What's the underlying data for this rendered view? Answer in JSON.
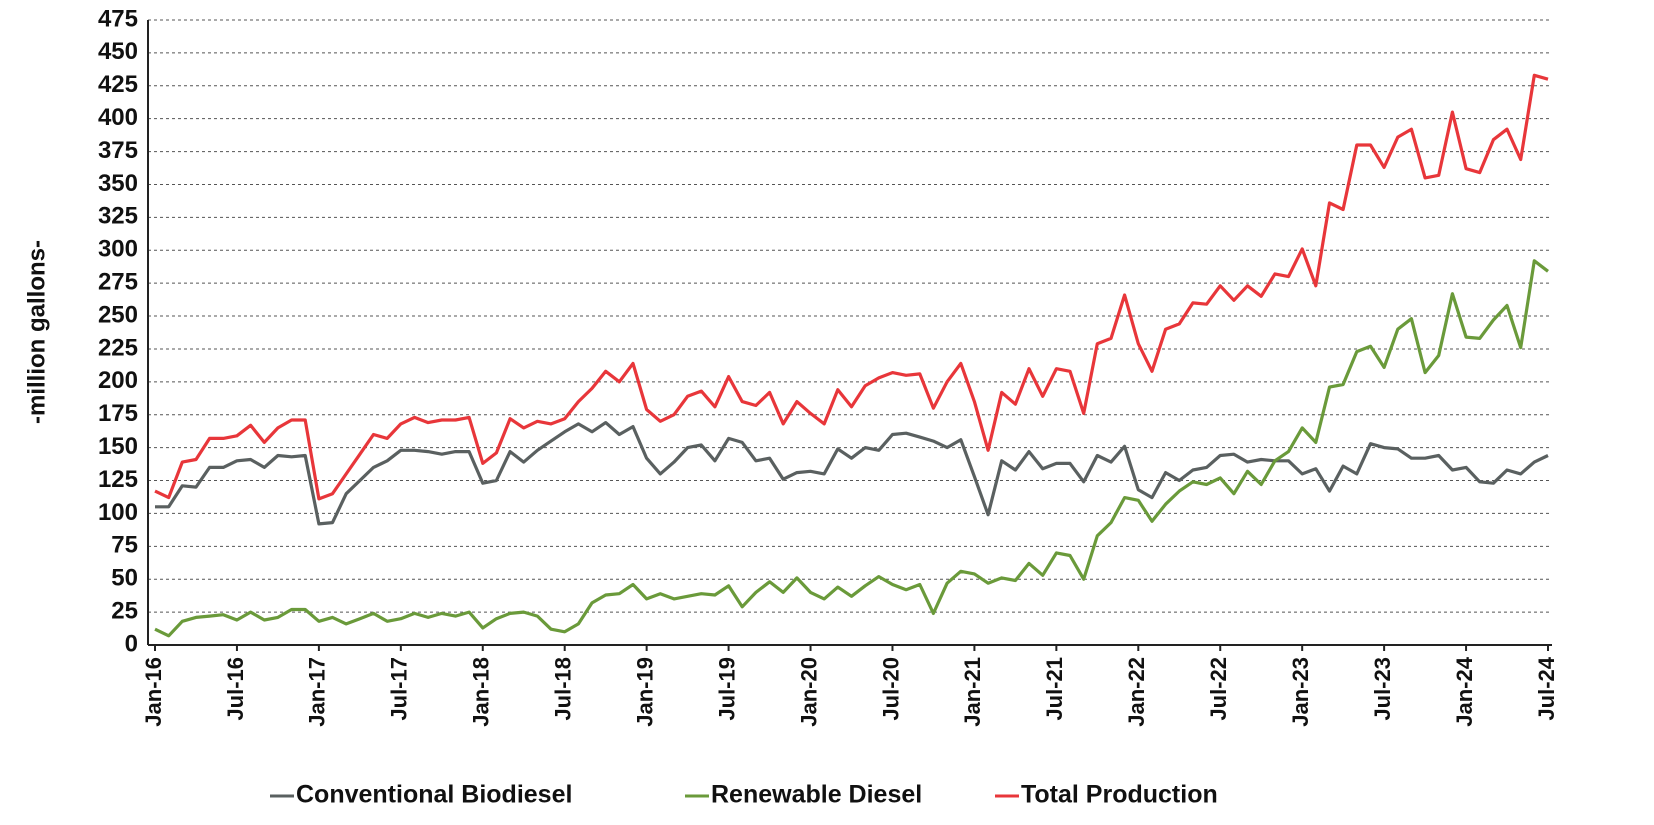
{
  "chart_data": {
    "type": "line",
    "ylabel": "-million gallons-",
    "categories": [
      "Jan-16",
      null,
      null,
      null,
      null,
      null,
      "Jul-16",
      null,
      null,
      null,
      null,
      null,
      "Jan-17",
      null,
      null,
      null,
      null,
      null,
      "Jul-17",
      null,
      null,
      null,
      null,
      null,
      "Jan-18",
      null,
      null,
      null,
      null,
      null,
      "Jul-18",
      null,
      null,
      null,
      null,
      null,
      "Jan-19",
      null,
      null,
      null,
      null,
      null,
      "Jul-19",
      null,
      null,
      null,
      null,
      null,
      "Jan-20",
      null,
      null,
      null,
      null,
      null,
      "Jul-20",
      null,
      null,
      null,
      null,
      null,
      "Jan-21",
      null,
      null,
      null,
      null,
      null,
      "Jul-21",
      null,
      null,
      null,
      null,
      null,
      "Jan-22",
      null,
      null,
      null,
      null,
      null,
      "Jul-22",
      null,
      null,
      null,
      null,
      null,
      "Jan-23",
      null,
      null,
      null,
      null,
      null,
      "Jul-23",
      null,
      null,
      null,
      null,
      null,
      "Jan-24",
      null,
      null,
      null,
      null,
      null,
      "Jul-24"
    ],
    "series": [
      {
        "name": "Conventional Biodiesel",
        "color": "#5a6060",
        "values": [
          105,
          105,
          121,
          120,
          135,
          135,
          140,
          141,
          135,
          144,
          143,
          144,
          92,
          93,
          115,
          125,
          135,
          140,
          148,
          148,
          147,
          145,
          147,
          147,
          123,
          125,
          147,
          139,
          148,
          155,
          162,
          168,
          162,
          169,
          160,
          166,
          142,
          130,
          139,
          150,
          152,
          140,
          157,
          154,
          140,
          142,
          126,
          131,
          132,
          130,
          149,
          142,
          150,
          148,
          160,
          161,
          158,
          155,
          150,
          156,
          128,
          99,
          140,
          133,
          147,
          134,
          138,
          138,
          124,
          144,
          139,
          151,
          118,
          112,
          131,
          125,
          133,
          135,
          144,
          145,
          139,
          141,
          140,
          140,
          130,
          134,
          117,
          136,
          130,
          153,
          150,
          149,
          142,
          142,
          144,
          133,
          135,
          124,
          123,
          133,
          130,
          139,
          144
        ]
      },
      {
        "name": "Renewable Diesel",
        "color": "#6a9a3a",
        "values": [
          12,
          7,
          18,
          21,
          22,
          23,
          19,
          25,
          19,
          21,
          27,
          27,
          18,
          21,
          16,
          20,
          24,
          18,
          20,
          24,
          21,
          24,
          22,
          25,
          13,
          20,
          24,
          25,
          22,
          12,
          10,
          16,
          32,
          38,
          39,
          46,
          35,
          39,
          35,
          37,
          39,
          38,
          45,
          29,
          40,
          48,
          40,
          51,
          40,
          35,
          44,
          37,
          45,
          52,
          46,
          42,
          46,
          24,
          47,
          56,
          54,
          47,
          51,
          49,
          62,
          53,
          70,
          68,
          50,
          83,
          93,
          112,
          110,
          94,
          107,
          117,
          124,
          122,
          127,
          115,
          132,
          122,
          140,
          147,
          165,
          154,
          196,
          198,
          223,
          227,
          211,
          240,
          248,
          207,
          220,
          267,
          234,
          233,
          247,
          258,
          226,
          292,
          284
        ]
      },
      {
        "name": "Total Production",
        "color": "#e8363a",
        "values": [
          117,
          112,
          139,
          141,
          157,
          157,
          159,
          167,
          154,
          165,
          171,
          171,
          111,
          115,
          130,
          145,
          160,
          157,
          168,
          173,
          169,
          171,
          171,
          173,
          138,
          146,
          172,
          165,
          170,
          168,
          172,
          185,
          195,
          208,
          200,
          214,
          179,
          170,
          175,
          189,
          193,
          181,
          204,
          185,
          182,
          192,
          168,
          185,
          176,
          168,
          194,
          181,
          197,
          203,
          207,
          205,
          206,
          180,
          200,
          214,
          185,
          148,
          192,
          183,
          210,
          189,
          210,
          208,
          176,
          229,
          233,
          266,
          229,
          208,
          240,
          244,
          260,
          259,
          273,
          262,
          273,
          265,
          282,
          280,
          301,
          273,
          336,
          331,
          380,
          380,
          363,
          386,
          392,
          355,
          357,
          405,
          362,
          359,
          384,
          392,
          369,
          433,
          430
        ]
      }
    ],
    "ylim": [
      0,
      475
    ],
    "yticks": [
      0,
      25,
      50,
      75,
      100,
      125,
      150,
      175,
      200,
      225,
      250,
      275,
      300,
      325,
      350,
      375,
      400,
      425,
      450,
      475
    ],
    "grid": true,
    "legend": "bottom"
  }
}
